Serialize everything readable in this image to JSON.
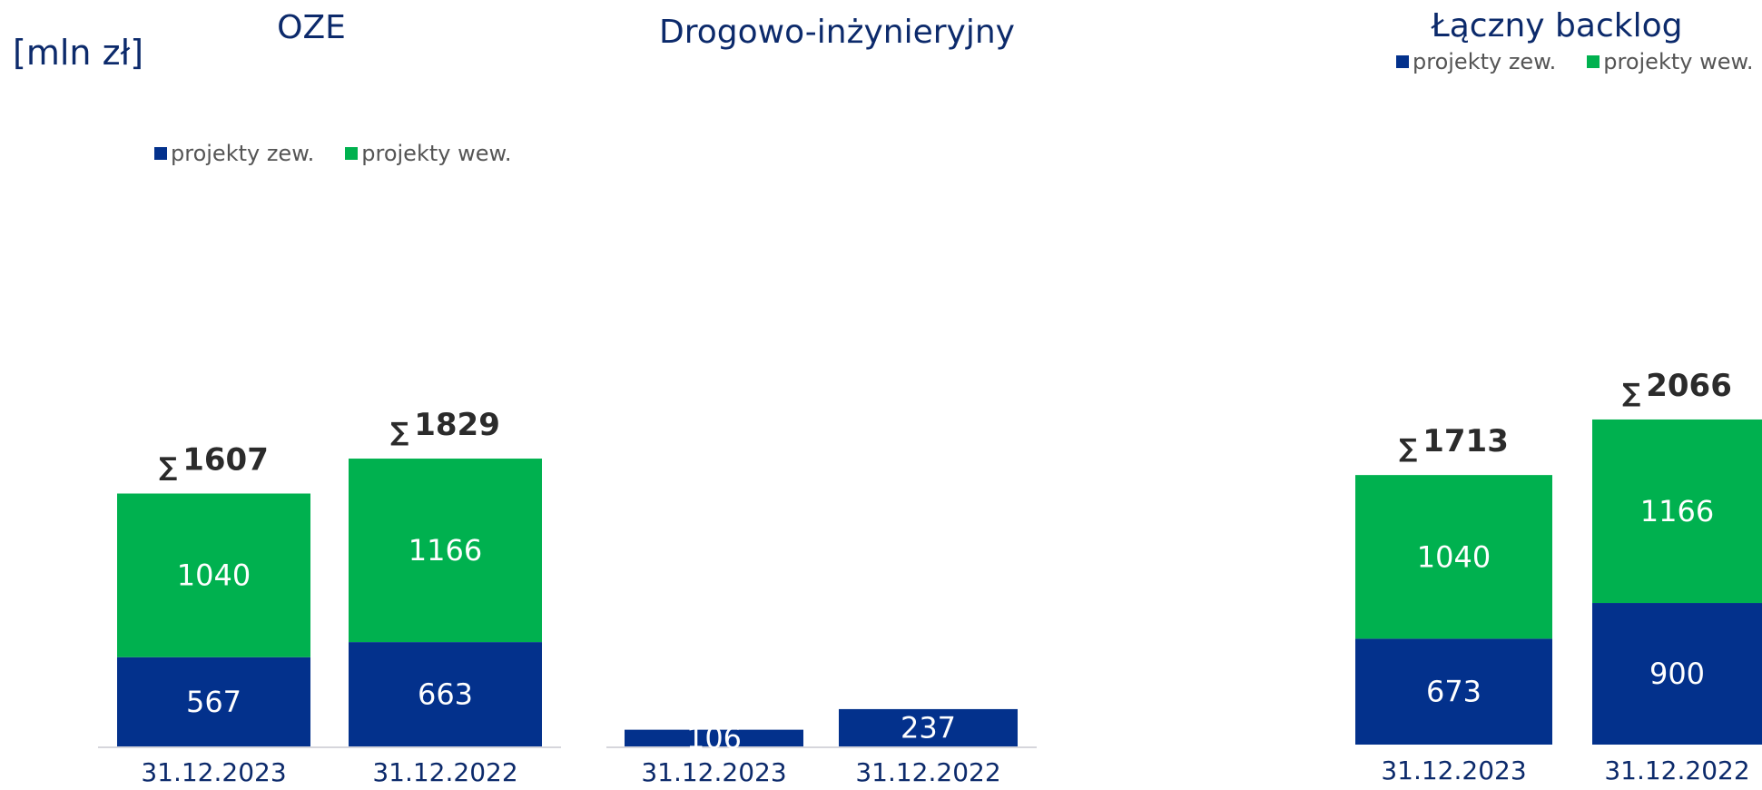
{
  "unit_label": "[mln zł]",
  "colors": {
    "external": "#03318c",
    "internal": "#00b14f"
  },
  "legend": {
    "external": "projekty zew.",
    "internal": "projekty wew."
  },
  "sum_symbol": "∑",
  "chart_data": [
    {
      "type": "bar",
      "title": "OZE",
      "categories": [
        "31.12.2023",
        "31.12.2022"
      ],
      "series": [
        {
          "name": "projekty zew.",
          "values": [
            567,
            663
          ]
        },
        {
          "name": "projekty wew.",
          "values": [
            1040,
            1166
          ]
        }
      ],
      "totals": [
        1607,
        1829
      ],
      "stacked": true
    },
    {
      "type": "bar",
      "title": "Drogowo-inżynieryjny",
      "categories": [
        "31.12.2023",
        "31.12.2022"
      ],
      "series": [
        {
          "name": "projekty zew.",
          "values": [
            106,
            237
          ]
        }
      ],
      "stacked": true
    },
    {
      "type": "bar",
      "title": "Łączny backlog",
      "categories": [
        "31.12.2023",
        "31.12.2022"
      ],
      "series": [
        {
          "name": "projekty zew.",
          "values": [
            673,
            900
          ]
        },
        {
          "name": "projekty wew.",
          "values": [
            1040,
            1166
          ]
        }
      ],
      "totals": [
        1713,
        2066
      ],
      "stacked": true
    }
  ]
}
